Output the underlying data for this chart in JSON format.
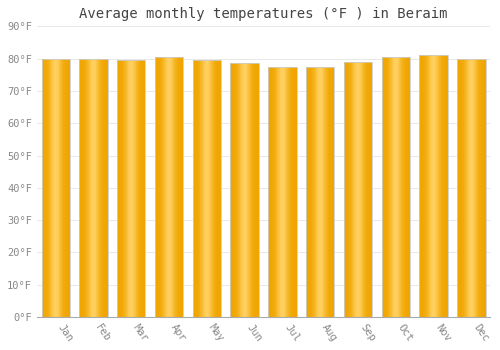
{
  "months": [
    "Jan",
    "Feb",
    "Mar",
    "Apr",
    "May",
    "Jun",
    "Jul",
    "Aug",
    "Sep",
    "Oct",
    "Nov",
    "Dec"
  ],
  "values": [
    80,
    80,
    79.5,
    80.5,
    79.5,
    78.5,
    77.5,
    77.5,
    79,
    80.5,
    81,
    80
  ],
  "title": "Average monthly temperatures (°F ) in Beraim",
  "ylim": [
    0,
    90
  ],
  "yticks": [
    0,
    10,
    20,
    30,
    40,
    50,
    60,
    70,
    80,
    90
  ],
  "ytick_labels": [
    "0°F",
    "10°F",
    "20°F",
    "30°F",
    "40°F",
    "50°F",
    "60°F",
    "70°F",
    "80°F",
    "90°F"
  ],
  "bar_color_dark": "#F0A500",
  "bar_color_light": "#FFD060",
  "bar_edge_color": "#BBBBBB",
  "background_color": "#FFFFFF",
  "grid_color": "#E8E8E8",
  "title_fontsize": 10,
  "tick_fontsize": 7.5,
  "title_color": "#444444",
  "tick_color": "#888888",
  "bar_width": 0.75
}
